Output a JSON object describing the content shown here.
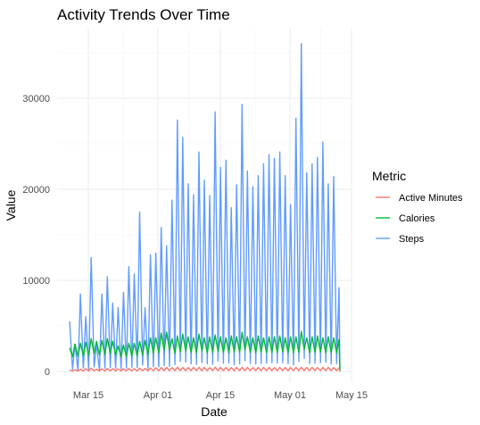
{
  "chart_data": {
    "type": "line",
    "title": "Activity Trends Over Time",
    "xlabel": "Date",
    "ylabel": "Value",
    "x_ticks": [
      "Mar 15",
      "Apr 01",
      "Apr 15",
      "May 01",
      "May 15"
    ],
    "y_ticks": [
      0,
      10000,
      20000,
      30000
    ],
    "ylim": [
      0,
      36000
    ],
    "legend_title": "Metric",
    "legend_position": "right",
    "grid": true,
    "series": [
      {
        "name": "Active Minutes",
        "color": "#f8766d"
      },
      {
        "name": "Calories",
        "color": "#00ba38"
      },
      {
        "name": "Steps",
        "color": "#619cff"
      }
    ],
    "steps_peaks": [
      5500,
      3000,
      8500,
      6000,
      12500,
      3000,
      8500,
      10400,
      7500,
      7000,
      8700,
      11500,
      10700,
      17500,
      7000,
      12800,
      13000,
      15800,
      13800,
      18800,
      27600,
      25700,
      20600,
      19400,
      24100,
      21000,
      19300,
      28500,
      22400,
      23200,
      18000,
      20500,
      29300,
      22000,
      20300,
      21500,
      22800,
      23800,
      23400,
      24100,
      21500,
      18300,
      27800,
      36000,
      21800,
      22800,
      23500,
      25200,
      20600,
      21400,
      9200
    ],
    "calories_peaks": [
      2600,
      3000,
      3100,
      3200,
      3600,
      3300,
      3400,
      3600,
      3300,
      2800,
      2900,
      3100,
      3100,
      3300,
      3400,
      3700,
      3700,
      4200,
      4300,
      3600,
      3900,
      4100,
      3800,
      3700,
      4100,
      3700,
      3800,
      4000,
      3800,
      3700,
      3900,
      3800,
      4300,
      3800,
      3700,
      3900,
      3700,
      3800,
      3800,
      3900,
      3700,
      3800,
      3800,
      4400,
      3700,
      3800,
      3900,
      3700,
      3800,
      3700,
      3500
    ],
    "active_peaks": [
      150,
      200,
      250,
      300,
      350,
      250,
      300,
      320,
      300,
      280,
      300,
      320,
      300,
      350,
      320,
      380,
      400,
      420,
      450,
      420,
      450,
      430,
      420,
      440,
      450,
      430,
      420,
      460,
      440,
      430,
      420,
      440,
      450,
      430,
      420,
      430,
      440,
      430,
      420,
      440,
      430,
      420,
      440,
      450,
      430,
      440,
      420,
      430,
      440,
      420,
      380
    ]
  }
}
